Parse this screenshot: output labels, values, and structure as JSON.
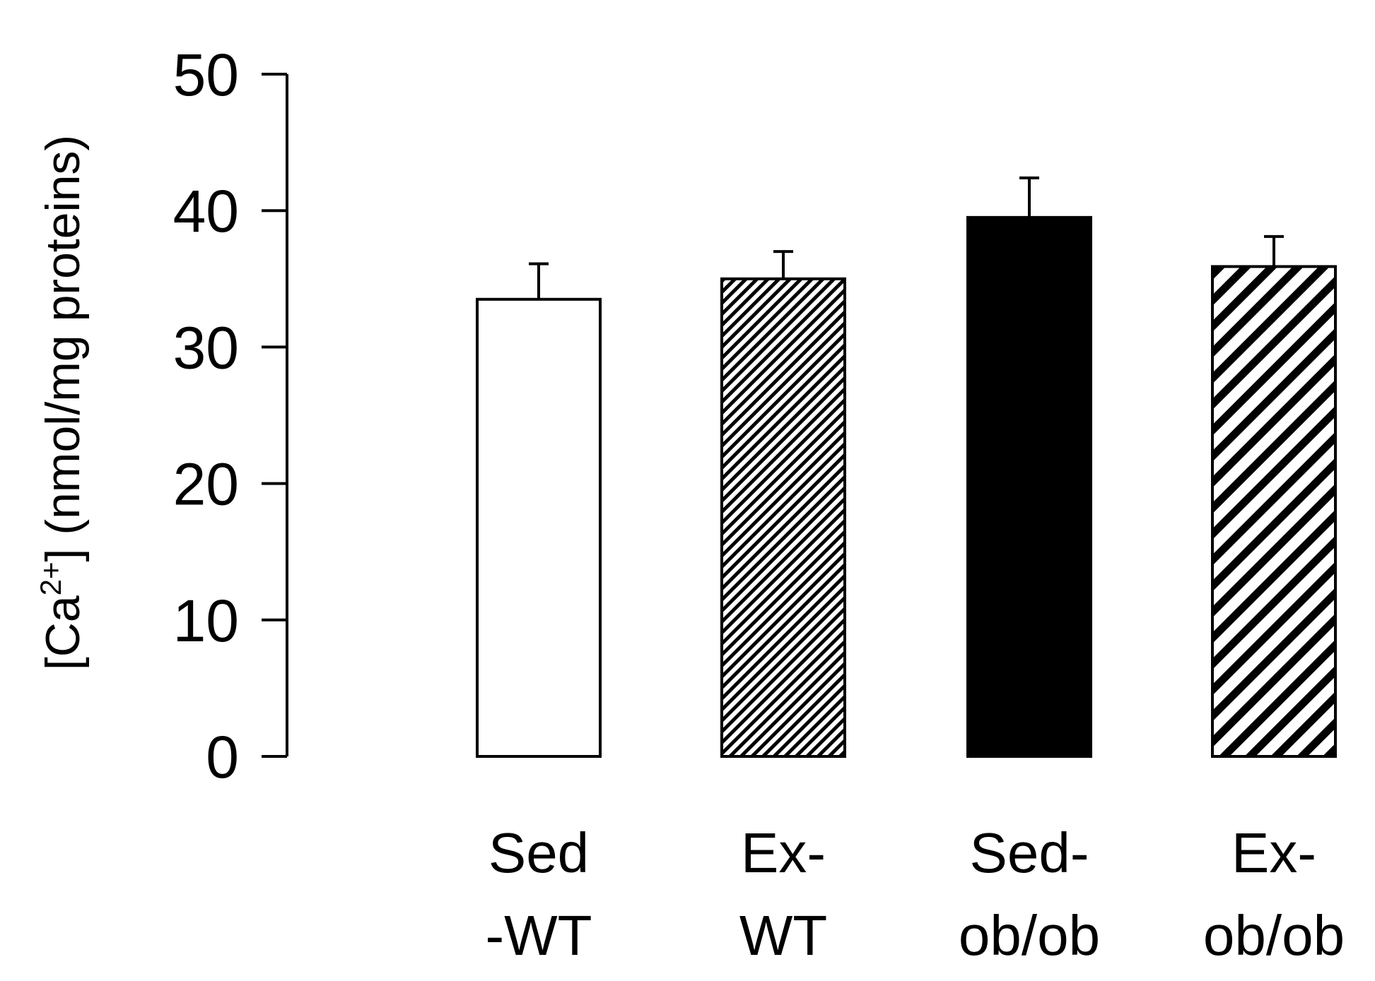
{
  "chart_data": {
    "type": "bar",
    "title": "",
    "xlabel": "",
    "ylabel": {
      "prefix": "[Ca",
      "superscript": "2+",
      "suffix": "] (nmol/mg proteins)"
    },
    "ylim": [
      0,
      50
    ],
    "yticks": [
      {
        "value": 0,
        "label": "0"
      },
      {
        "value": 10,
        "label": "10"
      },
      {
        "value": 20,
        "label": "20"
      },
      {
        "value": 30,
        "label": "30"
      },
      {
        "value": 40,
        "label": "40"
      },
      {
        "value": 50,
        "label": "50"
      }
    ],
    "categories": [
      {
        "line1": "Sed",
        "line2": "-WT"
      },
      {
        "line1": "Ex-",
        "line2": "WT"
      },
      {
        "line1": "Sed-",
        "line2": "ob/ob"
      },
      {
        "line1": "Ex-",
        "line2": "ob/ob"
      }
    ],
    "values": [
      33.5,
      35.0,
      39.5,
      35.9
    ],
    "errors": [
      2.6,
      2.0,
      2.9,
      2.2
    ],
    "fills": [
      "white",
      "fine-hatch",
      "black",
      "wide-hatch"
    ],
    "grid": false,
    "legend": "none"
  }
}
